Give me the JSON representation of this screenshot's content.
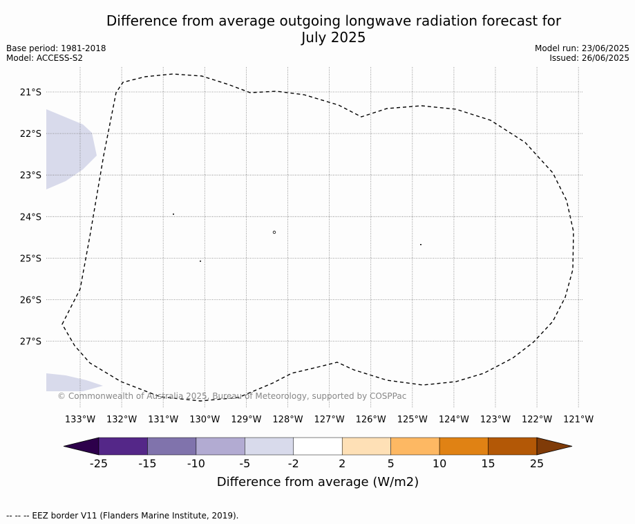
{
  "title_line1": "Difference from average outgoing longwave radiation forecast for",
  "title_line2": "July 2025",
  "base_period": "Base period: 1981-2018",
  "model": "Model: ACCESS-S2",
  "model_run": "Model run: 23/06/2025",
  "issued": "Issued: 26/06/2025",
  "copyright": "© Commonwealth of Australia 2025, Bureau of Meteorology, supported by COSPPac",
  "lat_labels": [
    "21°S",
    "22°S",
    "23°S",
    "24°S",
    "25°S",
    "26°S",
    "27°S"
  ],
  "lon_labels": [
    "133°W",
    "132°W",
    "131°W",
    "130°W",
    "129°W",
    "128°W",
    "127°W",
    "126°W",
    "125°W",
    "124°W",
    "123°W",
    "122°W",
    "121°W"
  ],
  "colorbar": {
    "ticks": [
      "-25",
      "-15",
      "-10",
      "-5",
      "-2",
      "2",
      "5",
      "10",
      "15",
      "25"
    ],
    "colors": [
      "#2d004b",
      "#542788",
      "#8073ac",
      "#b2abd2",
      "#d8daeb",
      "#ffffff",
      "#fee0b6",
      "#fdb863",
      "#e08214",
      "#b35806",
      "#7f3b08"
    ],
    "label": "Difference from average (W/m2)"
  },
  "footer": "--  --  -- EEZ border V11 (Flanders Marine Institute, 2019)."
}
